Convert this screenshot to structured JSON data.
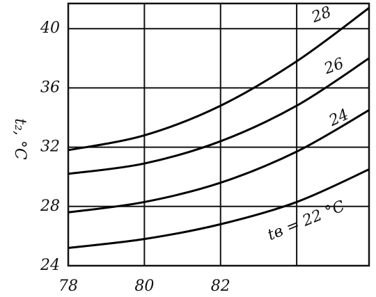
{
  "chart_data": {
    "type": "line",
    "y_label": "t₂, °C",
    "x": [
      78,
      80,
      82,
      84,
      85.9
    ],
    "series": [
      {
        "name": "tв = 22 °C",
        "color": "#000000",
        "values": [
          25.2,
          25.8,
          26.8,
          28.3,
          30.5
        ]
      },
      {
        "name": "24",
        "color": "#000000",
        "values": [
          27.6,
          28.3,
          29.6,
          31.7,
          34.5
        ]
      },
      {
        "name": "26",
        "color": "#000000",
        "values": [
          30.2,
          30.9,
          32.4,
          34.8,
          38.0
        ]
      },
      {
        "name": "28",
        "color": "#000000",
        "values": [
          31.8,
          32.8,
          34.8,
          37.8,
          41.4
        ]
      }
    ],
    "xlim": [
      78,
      85.9
    ],
    "ylim": [
      24,
      41.7
    ],
    "xticks": [
      78,
      80,
      82,
      {
        "value": 84,
        "label": null
      }
    ],
    "yticks": [
      24,
      28,
      32,
      36,
      40
    ],
    "grid": true
  }
}
